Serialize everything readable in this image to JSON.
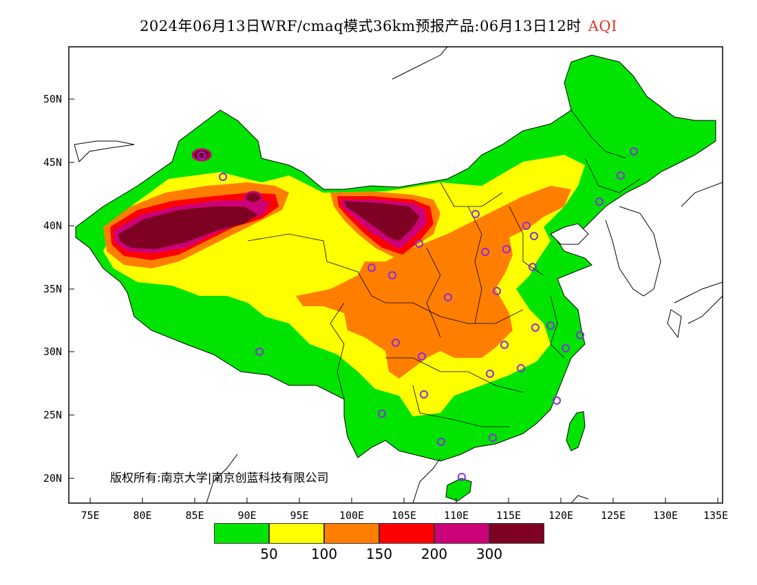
{
  "title": {
    "main": "2024年06月13日WRF/cmaq模式36km预报产品:06月13日12时",
    "variable": "AQI"
  },
  "lat_ticks": [
    "50N",
    "45N",
    "40N",
    "35N",
    "30N",
    "25N",
    "20N"
  ],
  "lon_ticks": [
    "75E",
    "80E",
    "85E",
    "90E",
    "95E",
    "100E",
    "105E",
    "110E",
    "115E",
    "120E",
    "125E",
    "130E",
    "135E"
  ],
  "copyright": "版权所有:南京大学|南京创蓝科技有限公司",
  "legend": {
    "colors": [
      "#00e400",
      "#ffff00",
      "#ff7e00",
      "#ff0000",
      "#cc0077",
      "#7e0023"
    ],
    "labels": [
      "50",
      "100",
      "150",
      "200",
      "300"
    ]
  },
  "colors": {
    "good": "#00e400",
    "moderate": "#ffff00",
    "usg": "#ff7e00",
    "unhealthy": "#ff0000",
    "very_unhealthy": "#cc0077",
    "hazardous": "#7e0023",
    "station_marker": "#8a2be2"
  }
}
